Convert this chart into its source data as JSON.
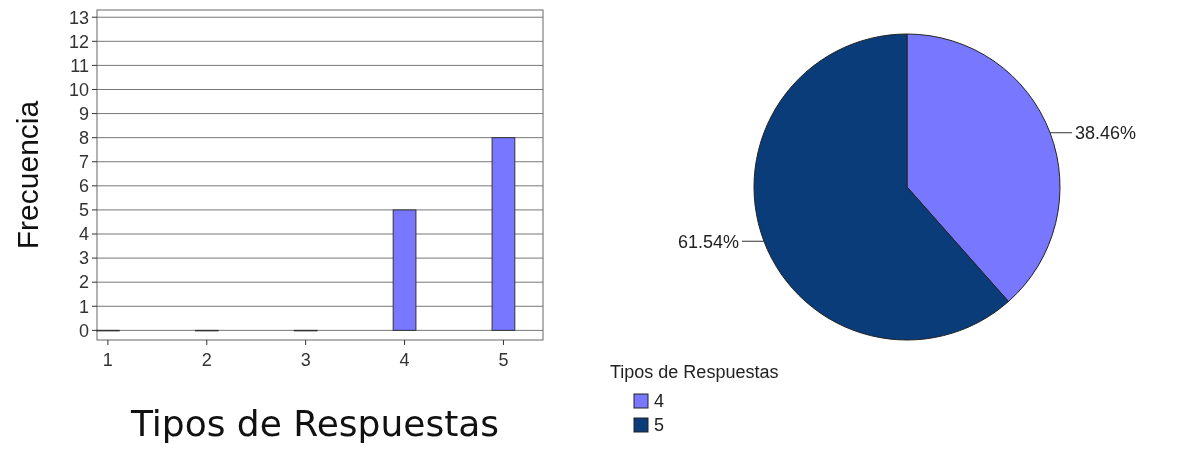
{
  "chart_data": [
    {
      "type": "bar",
      "xlabel": "Tipos de Respuestas",
      "ylabel": "Frecuencia",
      "x": [
        1,
        2,
        3,
        4,
        5
      ],
      "values": [
        0,
        0,
        0,
        5,
        8
      ],
      "color": "#7777ff",
      "xlim": [
        0.89,
        5.4
      ],
      "xticks": [
        1,
        2,
        3,
        4,
        5
      ],
      "ylim": [
        -0.4,
        13.3
      ],
      "yticks": [
        0,
        1,
        2,
        3,
        4,
        5,
        6,
        7,
        8,
        9,
        10,
        11,
        12,
        13
      ],
      "grid": "y"
    },
    {
      "type": "pie",
      "legend_title": "Tipos de Respuestas",
      "categories": [
        "4",
        "5"
      ],
      "values": [
        38.46,
        61.54
      ],
      "colors": [
        "#7777ff",
        "#0a3c7a"
      ],
      "value_labels": [
        "38.46%",
        "61.54%"
      ],
      "legend": "bottom left"
    }
  ]
}
